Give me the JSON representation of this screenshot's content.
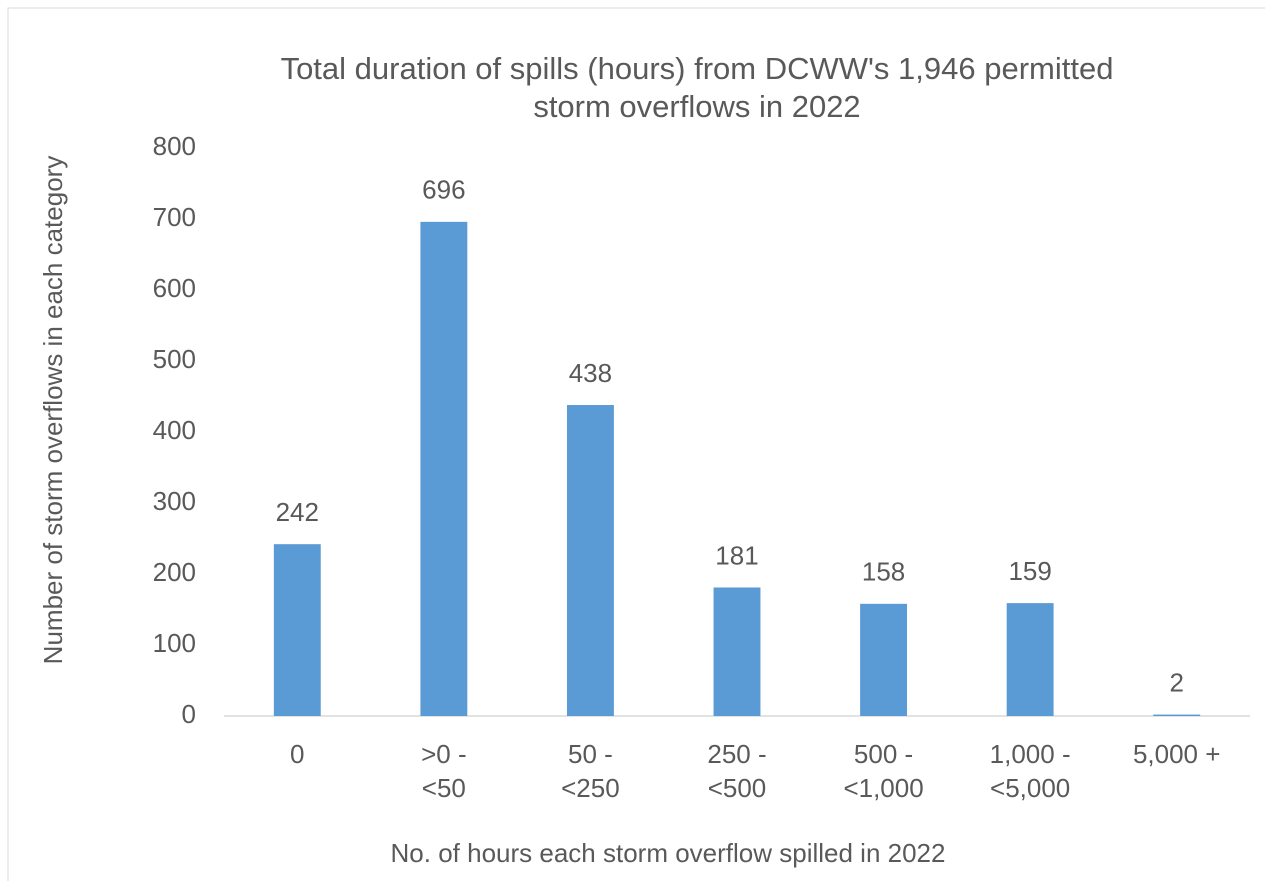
{
  "chart_data": {
    "type": "bar",
    "title": "Total duration of spills (hours) from DCWW's 1,946 permitted\nstorm overflows in 2022",
    "x_label": "No. of hours each storm overflow spilled in 2022",
    "y_label": "Number of storm overflows in each category",
    "categories": [
      "0",
      ">0 -\n<50",
      "50 -\n<250",
      "250 -\n<500",
      "500 -\n<1,000",
      "1,000 -\n<5,000",
      "5,000 +"
    ],
    "values": [
      242,
      696,
      438,
      181,
      158,
      159,
      2
    ],
    "color": "#5b9bd5",
    "ylim": [
      0,
      800
    ],
    "yticks": [
      0,
      100,
      200,
      300,
      400,
      500,
      600,
      700,
      800
    ],
    "grid": false
  }
}
